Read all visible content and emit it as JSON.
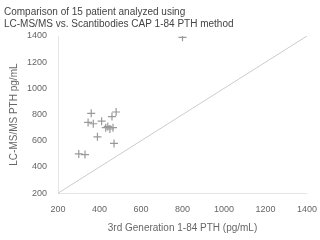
{
  "chart_data": {
    "type": "scatter",
    "title": [
      "Comparison of 15 patient analyzed using",
      "LC-MS/MS vs. Scantibodies CAP 1-84 PTH method"
    ],
    "xlabel": "3rd Generation 1-84 PTH (pg/mL)",
    "ylabel": "LC-MS/MS PTH pg/mL",
    "xlim": [
      200,
      1400
    ],
    "ylim": [
      200,
      1400
    ],
    "xticks": [
      200,
      400,
      600,
      800,
      1000,
      1200,
      1400
    ],
    "yticks": [
      200,
      400,
      600,
      800,
      1000,
      1200,
      1400
    ],
    "grid": false,
    "series": [
      {
        "type": "line",
        "color": "#cccccc",
        "line_style": "solid",
        "x": [
          200,
          1400
        ],
        "values": [
          200,
          1400
        ]
      },
      {
        "type": "scatter",
        "color": "#999999",
        "marker": "plus",
        "x": [
          300,
          330,
          345,
          360,
          370,
          390,
          410,
          430,
          440,
          450,
          460,
          465,
          470,
          480,
          800
        ],
        "values": [
          500,
          495,
          740,
          810,
          730,
          630,
          750,
          700,
          710,
          690,
          785,
          700,
          580,
          820,
          1390
        ]
      }
    ]
  }
}
